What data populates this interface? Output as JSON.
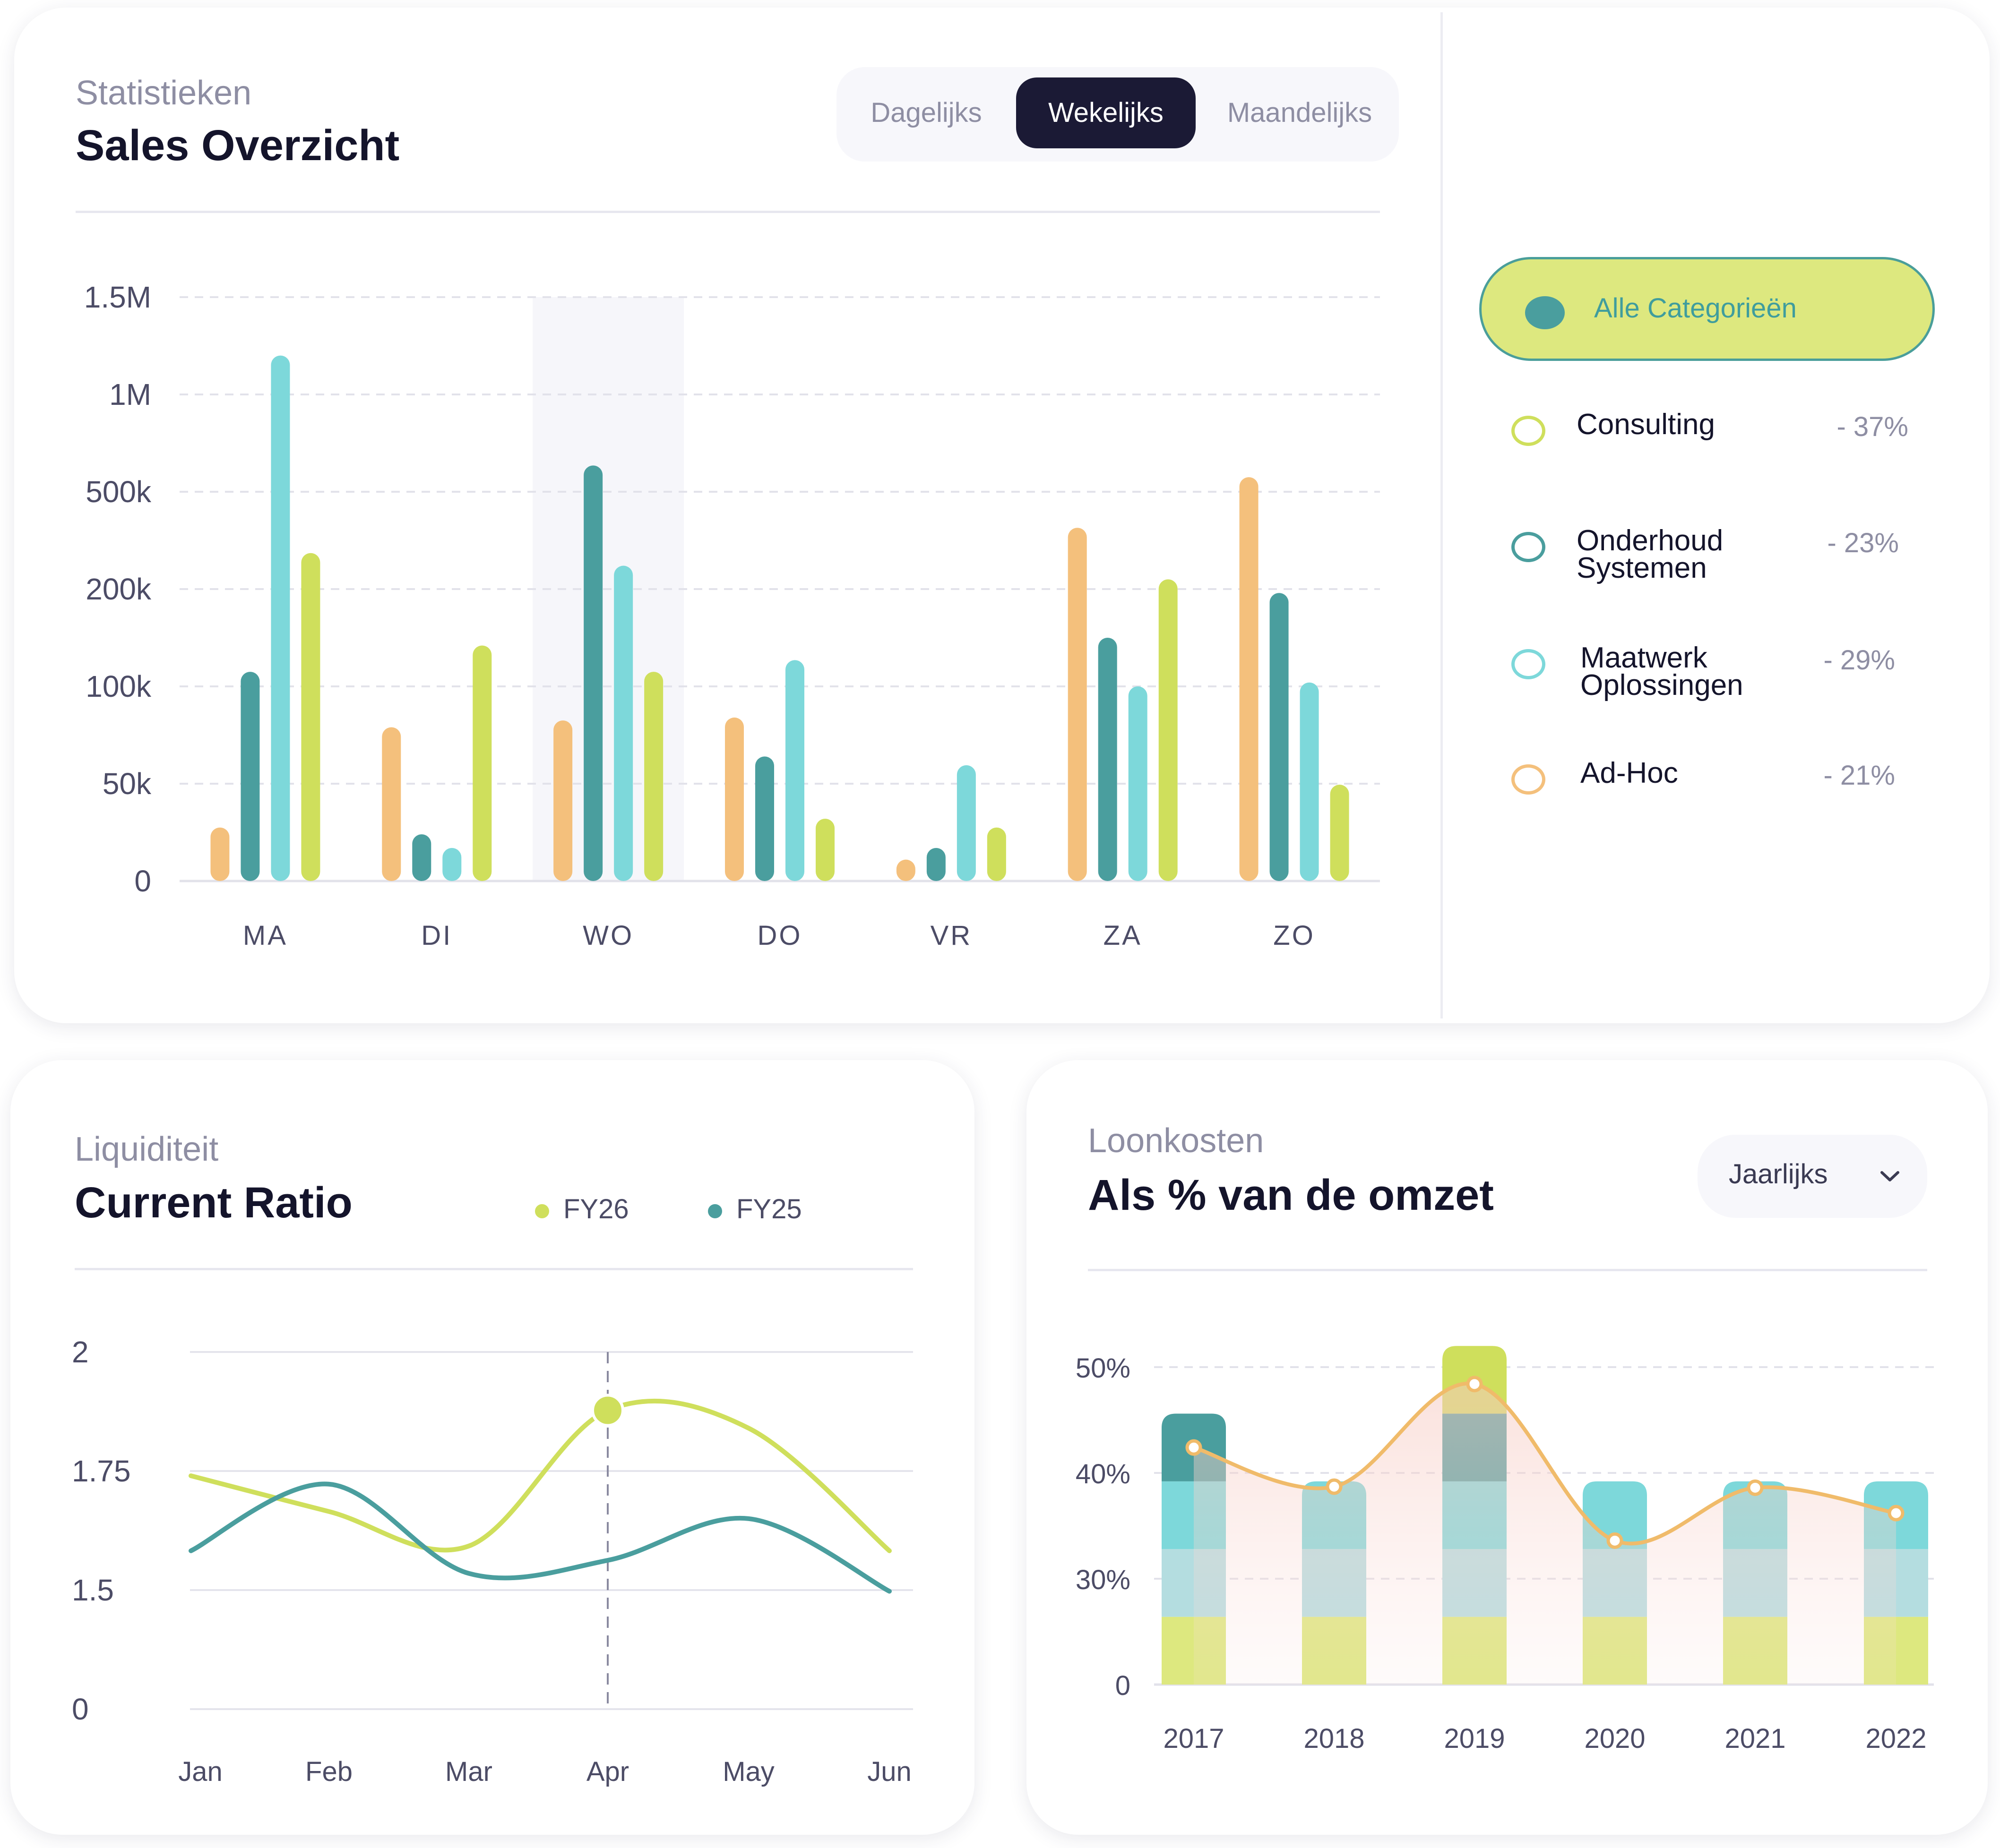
{
  "sales": {
    "subtitle": "Statistieken",
    "title": "Sales Overzicht",
    "tabs": [
      {
        "label": "Dagelijks",
        "active": false
      },
      {
        "label": "Wekelijks",
        "active": true
      },
      {
        "label": "Maandelijks",
        "active": false
      }
    ],
    "legend": {
      "all_label": "Alle Categorieën",
      "items": [
        {
          "name_lines": [
            "Consulting"
          ],
          "pct": "- 37%",
          "color": "#cfdf5c"
        },
        {
          "name_lines": [
            "Onderhoud",
            "Systemen"
          ],
          "pct": "- 23%",
          "color": "#4a9e9e"
        },
        {
          "name_lines": [
            "Maatwerk",
            "Oplossingen"
          ],
          "pct": "- 29%",
          "color": "#7dd8da"
        },
        {
          "name_lines": [
            "Ad-Hoc"
          ],
          "pct": "- 21%",
          "color": "#f4c07c"
        }
      ]
    }
  },
  "liquidity": {
    "subtitle": "Liquiditeit",
    "title": "Current Ratio",
    "legend": [
      {
        "label": "FY26",
        "color": "#cfdf5c"
      },
      {
        "label": "FY25",
        "color": "#4a9e9e"
      }
    ]
  },
  "payroll": {
    "subtitle": "Loonkosten",
    "title": "Als % van de omzet",
    "period_select": "Jaarlijks"
  },
  "chart_data": [
    {
      "type": "bar",
      "title": "Sales Overzicht",
      "categories": [
        "MA",
        "DI",
        "WO",
        "DO",
        "VR",
        "ZA",
        "ZO"
      ],
      "y_tick_labels": [
        "0",
        "50k",
        "100k",
        "200k",
        "500k",
        "1M",
        "1.5M"
      ],
      "highlighted_category": "WO",
      "note": "values expressed on the axis tick-index scale (0 = '0', 6 = '1.5M')",
      "series": [
        {
          "name": "Ad-Hoc",
          "color": "#f4c07c",
          "values": [
            0.55,
            1.58,
            1.65,
            1.68,
            0.22,
            3.63,
            4.15
          ]
        },
        {
          "name": "Onderhoud Systemen",
          "color": "#4a9e9e",
          "values": [
            2.15,
            0.48,
            4.27,
            1.28,
            0.34,
            2.5,
            2.96
          ]
        },
        {
          "name": "Maatwerk Oplossingen",
          "color": "#7dd8da",
          "values": [
            5.4,
            0.34,
            3.24,
            2.27,
            1.19,
            2.0,
            2.04
          ]
        },
        {
          "name": "Consulting",
          "color": "#cfdf5c",
          "values": [
            3.37,
            2.42,
            2.15,
            0.64,
            0.55,
            3.1,
            0.99
          ]
        }
      ]
    },
    {
      "type": "line",
      "title": "Current Ratio",
      "x": [
        "Jan",
        "Feb",
        "Mar",
        "Apr",
        "May",
        "Jun"
      ],
      "y_tick_labels": [
        "0",
        "1.5",
        "1.75",
        "2"
      ],
      "highlight_x": "Apr",
      "note": "values expressed on the axis tick-index scale (0 = '0', 3 = '2')",
      "series": [
        {
          "name": "FY26",
          "color": "#cfdf5c",
          "values": [
            1.96,
            1.66,
            1.37,
            2.51,
            2.36,
            1.33
          ]
        },
        {
          "name": "FY25",
          "color": "#4a9e9e",
          "values": [
            1.33,
            1.89,
            1.14,
            1.25,
            1.6,
            0.99
          ]
        }
      ]
    },
    {
      "type": "bar",
      "title": "Als % van de omzet",
      "categories": [
        "2017",
        "2018",
        "2019",
        "2020",
        "2021",
        "2022"
      ],
      "y_tick_labels": [
        "0",
        "30%",
        "40%",
        "50%"
      ],
      "note": "stacked bands plus overlay line, on the axis tick-index scale (0 = '0', 3 = '50%')",
      "bar_layers": [
        {
          "color": "#dde87f",
          "values": [
            0.64,
            0.64,
            0.64,
            0.64,
            0.64,
            0.64
          ]
        },
        {
          "color": "#b4dde0",
          "values": [
            0.64,
            0.64,
            0.64,
            0.64,
            0.64,
            0.64
          ]
        },
        {
          "color": "#7dd8da",
          "values": [
            0.64,
            0.64,
            0.64,
            0.64,
            0.64,
            0.64
          ]
        },
        {
          "color": "#4a9e9e",
          "values": [
            0.64,
            0,
            0.64,
            0,
            0,
            0
          ]
        },
        {
          "color": "#cfdf5c",
          "values": [
            0,
            0,
            0.64,
            0,
            0,
            0
          ]
        }
      ],
      "line": {
        "name": "Loonkosten",
        "color": "#f0bb6a",
        "values": [
          2.24,
          1.87,
          2.84,
          1.36,
          1.86,
          1.62
        ]
      }
    }
  ]
}
